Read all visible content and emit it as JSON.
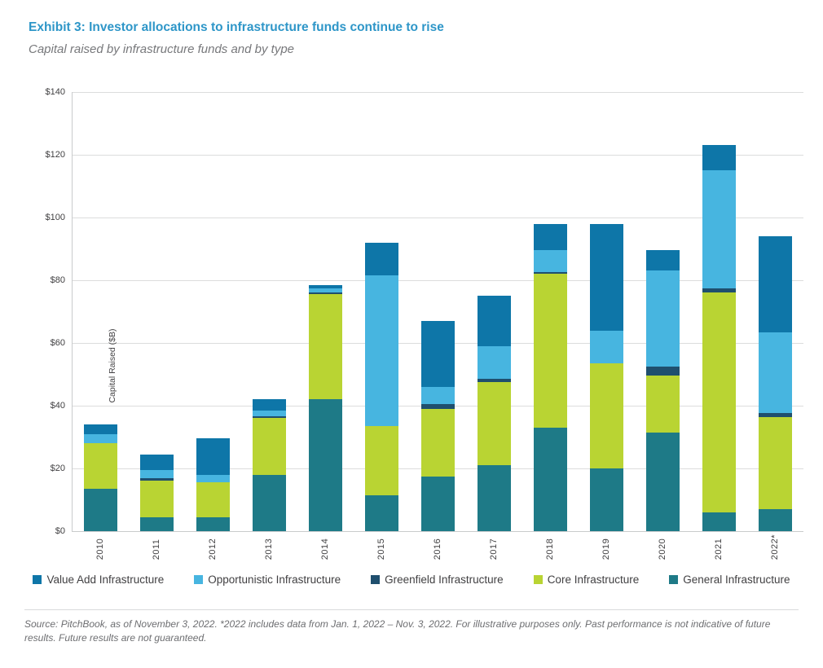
{
  "exhibit": {
    "title": "Exhibit 3: Investor allocations to infrastructure funds continue to rise",
    "subtitle": "Capital raised by infrastructure funds and by type"
  },
  "chart_data": {
    "type": "bar",
    "variant": "stacked",
    "title": "",
    "xlabel": "",
    "ylabel": "Capital Raised ($B)",
    "ylim": [
      0,
      140
    ],
    "ytick_step": 20,
    "ytick_prefix": "$",
    "grid": "horizontal",
    "legend_position": "bottom",
    "categories": [
      "2010",
      "2011",
      "2012",
      "2013",
      "2014",
      "2015",
      "2016",
      "2017",
      "2018",
      "2019",
      "2020",
      "2021",
      "2022*"
    ],
    "series": [
      {
        "name": "General Infrastructure",
        "color": "#1e7a87",
        "values": [
          13.5,
          4.5,
          4.5,
          18,
          42,
          11.5,
          17.5,
          21,
          33,
          20,
          31.5,
          6,
          7
        ]
      },
      {
        "name": "Core Infrastructure",
        "color": "#b9d433",
        "values": [
          14.5,
          11.5,
          11,
          18,
          33.5,
          22,
          21.5,
          26.5,
          49,
          33.5,
          18,
          70,
          29.5
        ]
      },
      {
        "name": "Greenfield Infrastructure",
        "color": "#1f4f6e",
        "values": [
          0,
          1,
          0,
          0.5,
          0.5,
          0,
          1.5,
          1,
          0.7,
          0,
          3,
          1.5,
          1.2
        ]
      },
      {
        "name": "Opportunistic Infrastructure",
        "color": "#47b5e0",
        "values": [
          3,
          2.5,
          2.5,
          2,
          1.5,
          48,
          5.5,
          10.5,
          6.8,
          10.5,
          30.5,
          37.5,
          25.8
        ]
      },
      {
        "name": "Value Add Infrastructure",
        "color": "#0e76a8",
        "values": [
          3,
          5,
          11.5,
          3.5,
          1,
          10.5,
          21,
          16,
          8.5,
          34,
          6.5,
          8,
          30.5
        ]
      }
    ],
    "legend_order": [
      "Value Add Infrastructure",
      "Opportunistic Infrastructure",
      "Greenfield Infrastructure",
      "Core Infrastructure",
      "General Infrastructure"
    ],
    "totals": [
      34,
      24.5,
      29.5,
      42,
      78.5,
      92,
      67,
      75,
      98,
      98,
      89.5,
      123,
      94
    ]
  },
  "footer": {
    "source": "Source: PitchBook, as of November 3, 2022. *2022 includes data from Jan. 1, 2022 – Nov. 3, 2022. For illustrative purposes only. Past performance is not indicative of future results. Future results are not guaranteed."
  }
}
